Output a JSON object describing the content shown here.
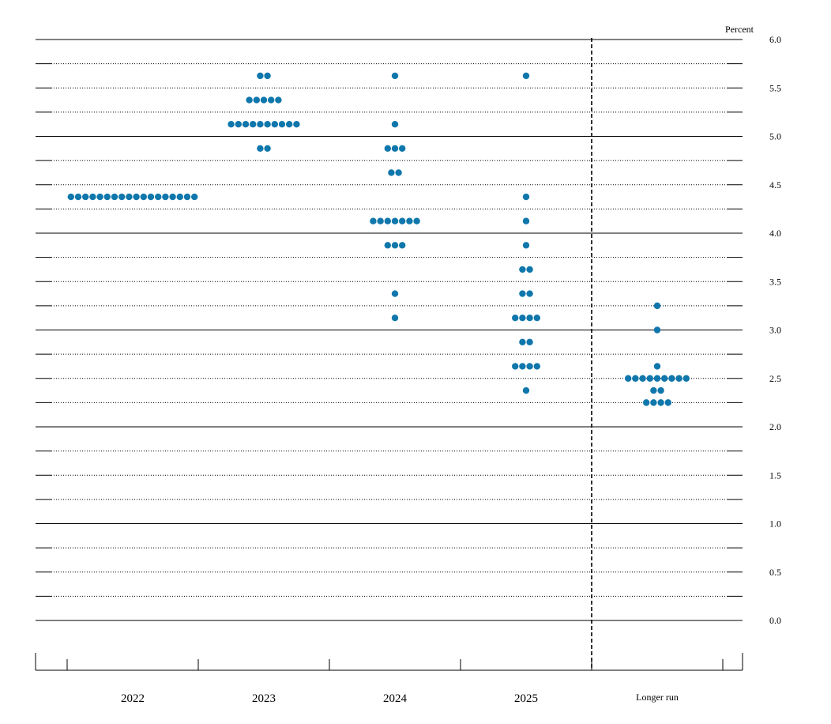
{
  "chart_data": {
    "type": "scatter",
    "subtype": "dot-plot",
    "title": "",
    "unit_label": "Percent",
    "categories": [
      "2022",
      "2023",
      "2024",
      "2025",
      "Longer run"
    ],
    "ylim": [
      0.0,
      6.0
    ],
    "y_ticks": [
      "0.0",
      "0.5",
      "1.0",
      "1.5",
      "2.0",
      "2.5",
      "3.0",
      "3.5",
      "4.0",
      "4.5",
      "5.0",
      "5.5",
      "6.0"
    ],
    "grid": "horizontal dotted every 0.25, solid every 1.0",
    "separator_before": "Longer run",
    "dot_color": "#0f77ab",
    "groups": [
      {
        "category": "2022",
        "rates": [
          {
            "y": 4.375,
            "count": 18
          }
        ]
      },
      {
        "category": "2023",
        "rates": [
          {
            "y": 5.625,
            "count": 2
          },
          {
            "y": 5.375,
            "count": 5
          },
          {
            "y": 5.125,
            "count": 10
          },
          {
            "y": 4.875,
            "count": 2
          }
        ]
      },
      {
        "category": "2024",
        "rates": [
          {
            "y": 5.625,
            "count": 1
          },
          {
            "y": 5.125,
            "count": 1
          },
          {
            "y": 4.875,
            "count": 3
          },
          {
            "y": 4.625,
            "count": 2
          },
          {
            "y": 4.125,
            "count": 7
          },
          {
            "y": 3.875,
            "count": 3
          },
          {
            "y": 3.375,
            "count": 1
          },
          {
            "y": 3.125,
            "count": 1
          }
        ]
      },
      {
        "category": "2025",
        "rates": [
          {
            "y": 5.625,
            "count": 1
          },
          {
            "y": 4.375,
            "count": 1
          },
          {
            "y": 4.125,
            "count": 1
          },
          {
            "y": 3.875,
            "count": 1
          },
          {
            "y": 3.625,
            "count": 2
          },
          {
            "y": 3.375,
            "count": 2
          },
          {
            "y": 3.125,
            "count": 4
          },
          {
            "y": 2.875,
            "count": 2
          },
          {
            "y": 2.625,
            "count": 4
          },
          {
            "y": 2.375,
            "count": 1
          }
        ]
      },
      {
        "category": "Longer run",
        "rates": [
          {
            "y": 3.25,
            "count": 1
          },
          {
            "y": 3.0,
            "count": 1
          },
          {
            "y": 2.625,
            "count": 1
          },
          {
            "y": 2.5,
            "count": 9
          },
          {
            "y": 2.375,
            "count": 2
          },
          {
            "y": 2.25,
            "count": 4
          }
        ]
      }
    ]
  }
}
